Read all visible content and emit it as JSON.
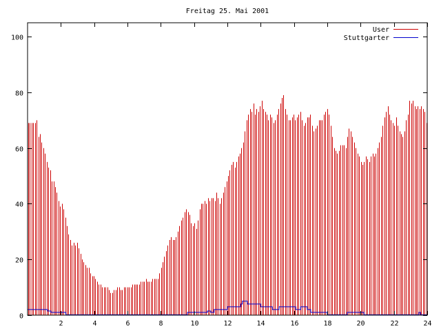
{
  "chart_data": {
    "type": "bar",
    "title": "Freitag 25. Mai 2001",
    "xlabel": "",
    "ylabel": "",
    "xlim": [
      0,
      24
    ],
    "ylim": [
      0,
      105
    ],
    "x_ticks": [
      {
        "value": 2,
        "label": "2"
      },
      {
        "value": 4,
        "label": "4"
      },
      {
        "value": 6,
        "label": "6"
      },
      {
        "value": 8,
        "label": "8"
      },
      {
        "value": 10,
        "label": "10"
      },
      {
        "value": 12,
        "label": "12"
      },
      {
        "value": 14,
        "label": "14"
      },
      {
        "value": 16,
        "label": "16"
      },
      {
        "value": 18,
        "label": "18"
      },
      {
        "value": 20,
        "label": "20"
      },
      {
        "value": 22,
        "label": "22"
      },
      {
        "value": 24,
        "label": "24"
      }
    ],
    "y_ticks": [
      {
        "value": 0,
        "label": "0"
      },
      {
        "value": 20,
        "label": "20"
      },
      {
        "value": 40,
        "label": "40"
      },
      {
        "value": 60,
        "label": "60"
      },
      {
        "value": 80,
        "label": "80"
      },
      {
        "value": 100,
        "label": "100"
      }
    ],
    "grid": false,
    "legend_position": "top-right",
    "x_step_hours": 0.0833,
    "series": [
      {
        "name": "User",
        "style": "impulses",
        "color": "#cc0000",
        "values": [
          69,
          69,
          69,
          69,
          69,
          70,
          64,
          65,
          62,
          60,
          58,
          55,
          53,
          52,
          48,
          48,
          46,
          44,
          41,
          39,
          40,
          38,
          35,
          32,
          29,
          27,
          25,
          26,
          25,
          26,
          24,
          22,
          20,
          19,
          18,
          17,
          17,
          15,
          14,
          14,
          13,
          12,
          11,
          11,
          10,
          10,
          10,
          10,
          9,
          8,
          8,
          9,
          9,
          10,
          10,
          9,
          9,
          10,
          10,
          10,
          10,
          10,
          11,
          11,
          11,
          11,
          11,
          12,
          12,
          12,
          13,
          12,
          12,
          12,
          13,
          13,
          13,
          13,
          15,
          17,
          19,
          21,
          23,
          25,
          27,
          28,
          27,
          27,
          28,
          30,
          32,
          34,
          35,
          37,
          38,
          37,
          36,
          33,
          32,
          33,
          31,
          34,
          38,
          40,
          40,
          41,
          40,
          42,
          41,
          42,
          42,
          41,
          44,
          42,
          40,
          42,
          44,
          46,
          48,
          50,
          52,
          54,
          55,
          53,
          55,
          57,
          58,
          60,
          62,
          66,
          70,
          72,
          74,
          73,
          76,
          72,
          74,
          73,
          75,
          77,
          74,
          73,
          72,
          70,
          72,
          71,
          69,
          70,
          72,
          74,
          76,
          78,
          79,
          74,
          72,
          70,
          70,
          71,
          72,
          70,
          71,
          72,
          73,
          70,
          68,
          69,
          71,
          71,
          72,
          68,
          66,
          67,
          68,
          70,
          70,
          70,
          72,
          73,
          74,
          72,
          68,
          64,
          60,
          59,
          58,
          59,
          61,
          61,
          61,
          60,
          64,
          67,
          66,
          64,
          62,
          60,
          58,
          57,
          55,
          54,
          55,
          57,
          56,
          55,
          57,
          58,
          57,
          58,
          60,
          62,
          64,
          68,
          71,
          73,
          75,
          72,
          70,
          69,
          68,
          71,
          68,
          66,
          65,
          64,
          66,
          70,
          72,
          77,
          76,
          77,
          75,
          74,
          75,
          74,
          75,
          74,
          73,
          69
        ]
      },
      {
        "name": "Stuttgarter",
        "style": "steps",
        "color": "#0000cc",
        "values": [
          2,
          2,
          2,
          2,
          2,
          2,
          2,
          2,
          2,
          2,
          2,
          2,
          1.5,
          1.5,
          1,
          1,
          1,
          1,
          1,
          1,
          1,
          1,
          1,
          0,
          0,
          0,
          0,
          0,
          0,
          0,
          0,
          0,
          0,
          0,
          0,
          0,
          0,
          0,
          0,
          0,
          0,
          0,
          0,
          0,
          0,
          0,
          0,
          0,
          0,
          0,
          0,
          0,
          0,
          0,
          0,
          0,
          0,
          0,
          0,
          0,
          0,
          0,
          0,
          0,
          0,
          0,
          0,
          0,
          0,
          0,
          0,
          0,
          0,
          0,
          0,
          0,
          0,
          0,
          0,
          0,
          0,
          0,
          0,
          0,
          0,
          0,
          0,
          0,
          0,
          0,
          0,
          0,
          0,
          0,
          0,
          0,
          1,
          1,
          1,
          1,
          1,
          1,
          1,
          1,
          1,
          1,
          1,
          1,
          1.5,
          1.5,
          1,
          1,
          2,
          2,
          2,
          2,
          2,
          2,
          2,
          2,
          3,
          3,
          3,
          3,
          3,
          3,
          3,
          3,
          4,
          5,
          5,
          5,
          4,
          4,
          4,
          4,
          4,
          4,
          4,
          4,
          3,
          3,
          3,
          3,
          3,
          3,
          3,
          2,
          2,
          2,
          2,
          3,
          3,
          3,
          3,
          3,
          3,
          3,
          3,
          3,
          3,
          2,
          2,
          2,
          3,
          3,
          3,
          3,
          2,
          2,
          1,
          1,
          1,
          1,
          1,
          1,
          1,
          1,
          1,
          1,
          0,
          0,
          0,
          0,
          0,
          0,
          0,
          0,
          0,
          0,
          0,
          0,
          1,
          1,
          1,
          1,
          1,
          1,
          1,
          1,
          1,
          1,
          0,
          0,
          0,
          0,
          0,
          0,
          0,
          0,
          0,
          0,
          0,
          0,
          0,
          0,
          0,
          0,
          0,
          0,
          0,
          0,
          0,
          0,
          0,
          0,
          0,
          0,
          0,
          0,
          0,
          0,
          0,
          0,
          0,
          1,
          0,
          0,
          0,
          0
        ]
      }
    ]
  }
}
